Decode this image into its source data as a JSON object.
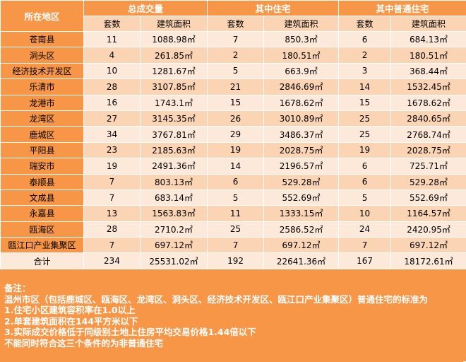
{
  "header": {
    "region": "所在地区",
    "total_deals": "总成交量",
    "of_which_housing": "其中住宅",
    "of_which_ordinary": "其中普通住宅"
  },
  "subheader": {
    "sets": "套数",
    "area": "建筑面积"
  },
  "rows": [
    {
      "region": "苍南县",
      "t_sets": "11",
      "t_area": "1088.98㎡",
      "h_sets": "7",
      "h_area": "850.3㎡",
      "o_sets": "6",
      "o_area": "684.13㎡"
    },
    {
      "region": "洞头区",
      "t_sets": "4",
      "t_area": "261.85㎡",
      "h_sets": "2",
      "h_area": "180.51㎡",
      "o_sets": "2",
      "o_area": "180.51㎡"
    },
    {
      "region": "经济技术开发区",
      "t_sets": "10",
      "t_area": "1281.67㎡",
      "h_sets": "5",
      "h_area": "663.9㎡",
      "o_sets": "3",
      "o_area": "368.44㎡"
    },
    {
      "region": "乐清市",
      "t_sets": "28",
      "t_area": "3107.85㎡",
      "h_sets": "21",
      "h_area": "2846.69㎡",
      "o_sets": "14",
      "o_area": "1532.45㎡"
    },
    {
      "region": "龙港市",
      "t_sets": "16",
      "t_area": "1743.1㎡",
      "h_sets": "15",
      "h_area": "1678.62㎡",
      "o_sets": "15",
      "o_area": "1678.62㎡"
    },
    {
      "region": "龙湾区",
      "t_sets": "27",
      "t_area": "3145.35㎡",
      "h_sets": "26",
      "h_area": "3010.89㎡",
      "o_sets": "25",
      "o_area": "2840.65㎡"
    },
    {
      "region": "鹿城区",
      "t_sets": "34",
      "t_area": "3767.81㎡",
      "h_sets": "29",
      "h_area": "3486.37㎡",
      "o_sets": "25",
      "o_area": "2768.74㎡"
    },
    {
      "region": "平阳县",
      "t_sets": "23",
      "t_area": "2185.63㎡",
      "h_sets": "19",
      "h_area": "2028.75㎡",
      "o_sets": "19",
      "o_area": "2028.75㎡"
    },
    {
      "region": "瑞安市",
      "t_sets": "19",
      "t_area": "2491.36㎡",
      "h_sets": "14",
      "h_area": "2196.57㎡",
      "o_sets": "6",
      "o_area": "725.71㎡"
    },
    {
      "region": "泰顺县",
      "t_sets": "7",
      "t_area": "803.13㎡",
      "h_sets": "6",
      "h_area": "529.28㎡",
      "o_sets": "6",
      "o_area": "529.28㎡"
    },
    {
      "region": "文成县",
      "t_sets": "7",
      "t_area": "683.14㎡",
      "h_sets": "5",
      "h_area": "552.69㎡",
      "o_sets": "5",
      "o_area": "552.69㎡"
    },
    {
      "region": "永嘉县",
      "t_sets": "13",
      "t_area": "1563.83㎡",
      "h_sets": "11",
      "h_area": "1333.15㎡",
      "o_sets": "10",
      "o_area": "1164.57㎡"
    },
    {
      "region": "瓯海区",
      "t_sets": "28",
      "t_area": "2710.2㎡",
      "h_sets": "25",
      "h_area": "2586.52㎡",
      "o_sets": "24",
      "o_area": "2420.95㎡"
    },
    {
      "region": "瓯江口产业集聚区",
      "t_sets": "7",
      "t_area": "697.12㎡",
      "h_sets": "7",
      "h_area": "697.12㎡",
      "o_sets": "7",
      "o_area": "697.12㎡"
    }
  ],
  "total": {
    "region": "合计",
    "t_sets": "234",
    "t_area": "25531.02㎡",
    "h_sets": "192",
    "h_area": "22641.36㎡",
    "o_sets": "167",
    "o_area": "18172.61㎡"
  },
  "notes": {
    "title": "备注：",
    "line1": "温州市区（包括鹿城区、瓯海区、龙湾区、洞头区、经济技术开发区、瓯江口产业集聚区）普通住宅的标准为",
    "line2": "1.住宅小区建筑容积率在1.0以上",
    "line3": "2.单套建筑面积在144平方米以下",
    "line4": "3.实际成交价格低于同级别土地上住房平均交易价格1.44倍以下",
    "line5": "不能同时符合这三个条件的为非普通住宅"
  },
  "colors": {
    "header_orange": "#f79646",
    "row_light": "#fde9d9",
    "row_mid": "#fbd4b4"
  }
}
